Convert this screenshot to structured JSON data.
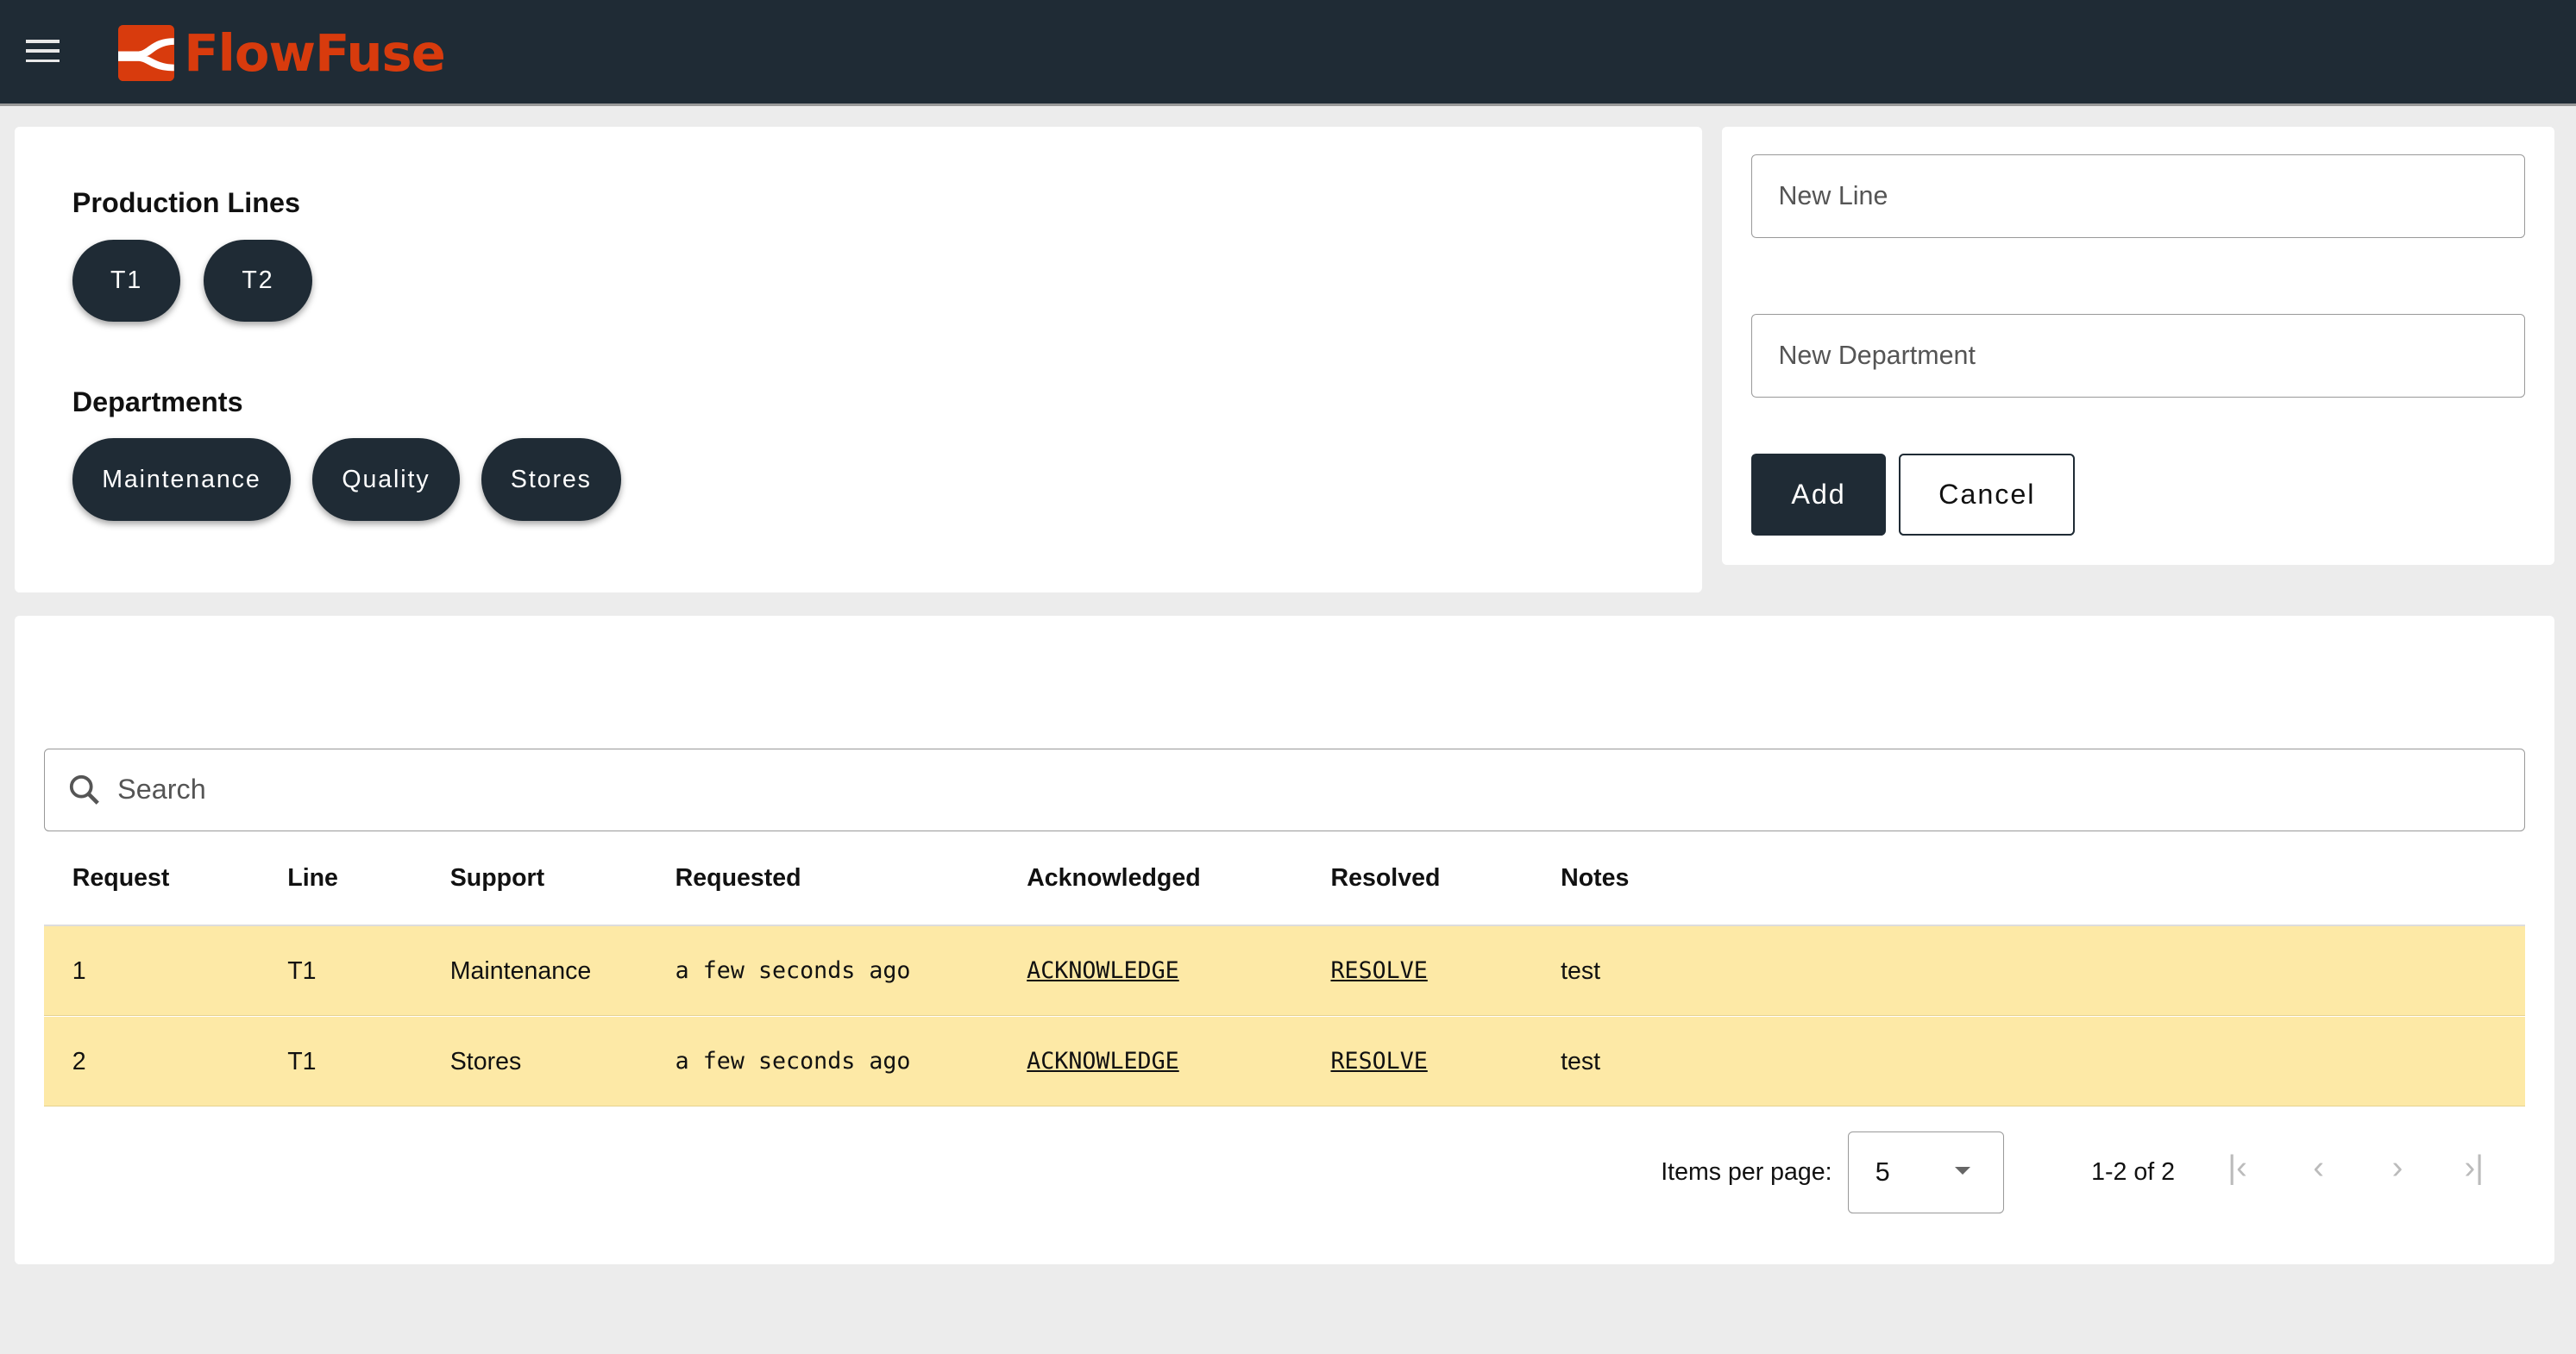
{
  "header": {
    "brand": "FlowFuse",
    "menu_icon": "hamburger-icon",
    "brand_color": "#d83b0d"
  },
  "lines": {
    "title": "Production Lines",
    "items": [
      "T1",
      "T2"
    ]
  },
  "departments": {
    "title": "Departments",
    "items": [
      "Maintenance",
      "Quality",
      "Stores"
    ]
  },
  "form": {
    "new_line_placeholder": "New Line",
    "new_department_placeholder": "New Department",
    "add_label": "Add",
    "cancel_label": "Cancel"
  },
  "table": {
    "search_placeholder": "Search",
    "columns": [
      "Request",
      "Line",
      "Support",
      "Requested",
      "Acknowledged",
      "Resolved",
      "Notes"
    ],
    "rows": [
      {
        "request": "1",
        "line": "T1",
        "support": "Maintenance",
        "requested": "a few seconds ago",
        "acknowledged": "ACKNOWLEDGE",
        "resolved": "RESOLVE",
        "notes": "test"
      },
      {
        "request": "2",
        "line": "T1",
        "support": "Stores",
        "requested": "a few seconds ago",
        "acknowledged": "ACKNOWLEDGE",
        "resolved": "RESOLVE",
        "notes": "test"
      }
    ],
    "row_color": "#fde9a6"
  },
  "pagination": {
    "items_per_page_label": "Items per page:",
    "items_per_page": "5",
    "range": "1-2 of 2"
  }
}
